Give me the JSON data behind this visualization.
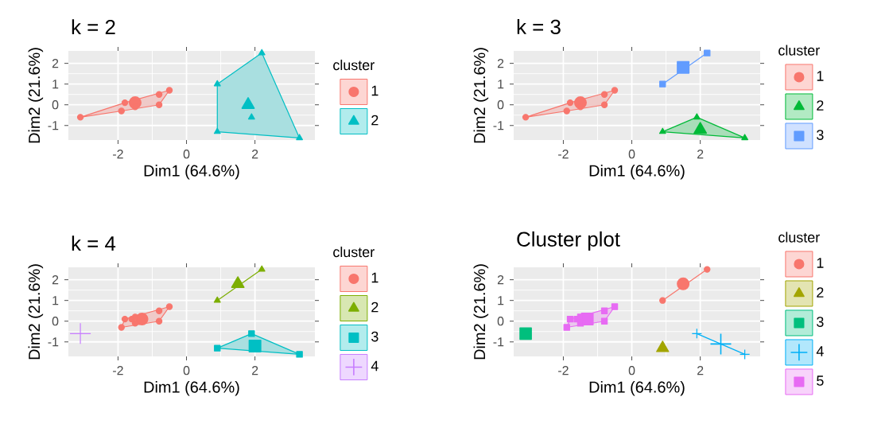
{
  "chart_data": [
    {
      "type": "scatter",
      "title": "k = 2",
      "xlabel": "Dim1 (64.6%)",
      "ylabel": "Dim2 (21.6%)",
      "legend_title": "cluster",
      "legend": "right",
      "grid": true,
      "xlim": [
        -3.45,
        3.75
      ],
      "ylim": [
        -1.7,
        2.6
      ],
      "xticks": [
        -2,
        0,
        2
      ],
      "yticks": [
        -1,
        0,
        1,
        2
      ],
      "series": [
        {
          "type": "area",
          "color": "#F8766D",
          "x": [
            -3.1,
            -1.9,
            -0.8,
            -0.5,
            -1.8
          ],
          "values": [
            -0.6,
            -0.3,
            0.0,
            0.7,
            0.1
          ]
        },
        {
          "type": "area",
          "color": "#00BFC4",
          "x": [
            0.9,
            2.2,
            3.3,
            0.9
          ],
          "values": [
            1.0,
            2.5,
            -1.6,
            -1.3
          ]
        },
        {
          "type": "scatter",
          "name": "1",
          "color": "#F8766D",
          "marker": "circle",
          "x": [
            -3.1,
            -1.9,
            -1.8,
            -1.6,
            -1.5,
            -0.8,
            -0.8,
            -0.5
          ],
          "values": [
            -0.6,
            -0.3,
            0.1,
            null,
            -0.1,
            0.5,
            0.0,
            0.7
          ]
        },
        {
          "type": "scatter",
          "color": "#F8766D",
          "marker": "circle",
          "x": [
            -1.5
          ],
          "values": [
            0.1
          ]
        },
        {
          "type": "scatter",
          "name": "2",
          "color": "#00BFC4",
          "marker": "triangle",
          "x": [
            0.9,
            2.2,
            0.9,
            3.3,
            1.9
          ],
          "values": [
            1.0,
            2.5,
            -1.3,
            -1.6,
            -0.6
          ]
        },
        {
          "type": "scatter",
          "color": "#00BFC4",
          "marker": "triangle",
          "x": [
            1.8
          ],
          "values": [
            0.0
          ]
        }
      ]
    },
    {
      "type": "scatter",
      "title": "k = 3",
      "xlabel": "Dim1 (64.6%)",
      "ylabel": "Dim2 (21.6%)",
      "legend_title": "cluster",
      "legend": "right",
      "grid": true,
      "xlim": [
        -3.45,
        3.75
      ],
      "ylim": [
        -1.7,
        2.6
      ],
      "xticks": [
        -2,
        0,
        2
      ],
      "yticks": [
        -1,
        0,
        1,
        2
      ],
      "series": [
        {
          "type": "area",
          "color": "#F8766D",
          "x": [
            -3.1,
            -1.9,
            -0.8,
            -0.5,
            -1.8
          ],
          "values": [
            -0.6,
            -0.3,
            0.0,
            0.7,
            0.1
          ]
        },
        {
          "type": "area",
          "color": "#00BA38",
          "x": [
            0.9,
            1.9,
            3.3
          ],
          "values": [
            -1.3,
            -0.6,
            -1.6
          ]
        },
        {
          "type": "line",
          "color": "#619CFF",
          "x": [
            0.9,
            2.2
          ],
          "values": [
            1.0,
            2.5
          ]
        },
        {
          "type": "scatter",
          "name": "1",
          "color": "#F8766D",
          "marker": "circle",
          "x": [
            -3.1,
            -1.9,
            -1.8,
            -1.6,
            -1.5,
            -0.8,
            -0.8,
            -0.5
          ],
          "values": [
            -0.6,
            -0.3,
            0.1,
            null,
            -0.1,
            0.5,
            0.0,
            0.7
          ]
        },
        {
          "type": "scatter",
          "color": "#F8766D",
          "marker": "circle",
          "x": [
            -1.5
          ],
          "values": [
            0.1
          ]
        },
        {
          "type": "scatter",
          "name": "2",
          "color": "#00BA38",
          "marker": "triangle",
          "x": [
            0.9,
            1.9,
            3.3
          ],
          "values": [
            -1.3,
            -0.6,
            -1.6
          ]
        },
        {
          "type": "scatter",
          "color": "#00BA38",
          "marker": "triangle",
          "x": [
            2.0
          ],
          "values": [
            -1.2
          ]
        },
        {
          "type": "scatter",
          "name": "3",
          "color": "#619CFF",
          "marker": "square",
          "x": [
            0.9,
            2.2
          ],
          "values": [
            1.0,
            2.5
          ]
        },
        {
          "type": "scatter",
          "color": "#619CFF",
          "marker": "square",
          "x": [
            1.5
          ],
          "values": [
            1.8
          ]
        }
      ]
    },
    {
      "type": "scatter",
      "title": "k = 4",
      "xlabel": "Dim1 (64.6%)",
      "ylabel": "Dim2 (21.6%)",
      "legend_title": "cluster",
      "legend": "right",
      "grid": true,
      "xlim": [
        -3.45,
        3.75
      ],
      "ylim": [
        -1.7,
        2.6
      ],
      "xticks": [
        -2,
        0,
        2
      ],
      "yticks": [
        -1,
        0,
        1,
        2
      ],
      "series": [
        {
          "type": "area",
          "color": "#F8766D",
          "x": [
            -1.9,
            -0.8,
            -0.5,
            -1.8
          ],
          "values": [
            -0.3,
            0.0,
            0.7,
            0.1
          ]
        },
        {
          "type": "line",
          "color": "#7CAE00",
          "x": [
            0.9,
            2.2
          ],
          "values": [
            1.0,
            2.5
          ]
        },
        {
          "type": "area",
          "color": "#00BFC4",
          "x": [
            0.9,
            1.9,
            3.3
          ],
          "values": [
            -1.3,
            -0.6,
            -1.6
          ]
        },
        {
          "type": "scatter",
          "name": "1",
          "color": "#F8766D",
          "marker": "circle",
          "x": [
            -1.9,
            -1.8,
            -1.6,
            -1.5,
            -1.5,
            -0.8,
            -0.8,
            -0.5
          ],
          "values": [
            -0.3,
            0.1,
            0.1,
            0.2,
            -0.1,
            0.5,
            0.0,
            0.7
          ]
        },
        {
          "type": "scatter",
          "color": "#F8766D",
          "marker": "circle",
          "x": [
            -1.3
          ],
          "values": [
            0.1
          ]
        },
        {
          "type": "scatter",
          "name": "2",
          "color": "#7CAE00",
          "marker": "triangle",
          "x": [
            0.9,
            2.2
          ],
          "values": [
            1.0,
            2.5
          ]
        },
        {
          "type": "scatter",
          "color": "#7CAE00",
          "marker": "triangle",
          "x": [
            1.5
          ],
          "values": [
            1.8
          ]
        },
        {
          "type": "scatter",
          "name": "3",
          "color": "#00BFC4",
          "marker": "square",
          "x": [
            0.9,
            1.9,
            3.3
          ],
          "values": [
            -1.3,
            -0.6,
            -1.6
          ]
        },
        {
          "type": "scatter",
          "color": "#00BFC4",
          "marker": "square",
          "x": [
            2.0
          ],
          "values": [
            -1.2
          ]
        },
        {
          "type": "scatter",
          "name": "4",
          "color": "#C77CFF",
          "marker": "cross",
          "x": [
            -3.1
          ],
          "values": [
            -0.6
          ]
        }
      ]
    },
    {
      "type": "scatter",
      "title": "Cluster plot",
      "xlabel": "Dim1 (64.6%)",
      "ylabel": "Dim2 (21.6%)",
      "legend_title": "cluster",
      "legend": "right",
      "grid": true,
      "xlim": [
        -3.45,
        3.75
      ],
      "ylim": [
        -1.7,
        2.6
      ],
      "xticks": [
        -2,
        0,
        2
      ],
      "yticks": [
        -1,
        0,
        1,
        2
      ],
      "series": [
        {
          "type": "line",
          "color": "#F8766D",
          "x": [
            0.9,
            2.2
          ],
          "values": [
            1.0,
            2.5
          ]
        },
        {
          "type": "line",
          "color": "#00B0F6",
          "x": [
            1.9,
            3.3
          ],
          "values": [
            -0.6,
            -1.6
          ]
        },
        {
          "type": "area",
          "color": "#E76BF3",
          "x": [
            -1.9,
            -0.8,
            -0.5,
            -1.8
          ],
          "values": [
            -0.3,
            0.0,
            0.7,
            0.1
          ]
        },
        {
          "type": "scatter",
          "name": "1",
          "color": "#F8766D",
          "marker": "circle",
          "x": [
            0.9,
            2.2
          ],
          "values": [
            1.0,
            2.5
          ]
        },
        {
          "type": "scatter",
          "color": "#F8766D",
          "marker": "circle",
          "x": [
            1.5
          ],
          "values": [
            1.8
          ]
        },
        {
          "type": "scatter",
          "name": "2",
          "color": "#A3A500",
          "marker": "triangle",
          "x": [
            0.9
          ],
          "values": [
            -1.3
          ]
        },
        {
          "type": "scatter",
          "name": "3",
          "color": "#00BF7D",
          "marker": "square",
          "x": [
            -3.1
          ],
          "values": [
            -0.6
          ]
        },
        {
          "type": "scatter",
          "name": "4",
          "color": "#00B0F6",
          "marker": "cross",
          "x": [
            1.9,
            3.3
          ],
          "values": [
            -0.6,
            -1.6
          ]
        },
        {
          "type": "scatter",
          "color": "#00B0F6",
          "marker": "cross",
          "x": [
            2.6
          ],
          "values": [
            -1.1
          ]
        },
        {
          "type": "scatter",
          "name": "5",
          "color": "#E76BF3",
          "marker": "square",
          "x": [
            -1.9,
            -1.8,
            -1.6,
            -1.5,
            -1.5,
            -0.8,
            -0.8,
            -0.5
          ],
          "values": [
            -0.3,
            0.1,
            0.1,
            0.2,
            -0.1,
            0.5,
            0.0,
            0.7
          ]
        },
        {
          "type": "scatter",
          "color": "#E76BF3",
          "marker": "square",
          "x": [
            -1.3
          ],
          "values": [
            0.1
          ]
        }
      ]
    }
  ]
}
